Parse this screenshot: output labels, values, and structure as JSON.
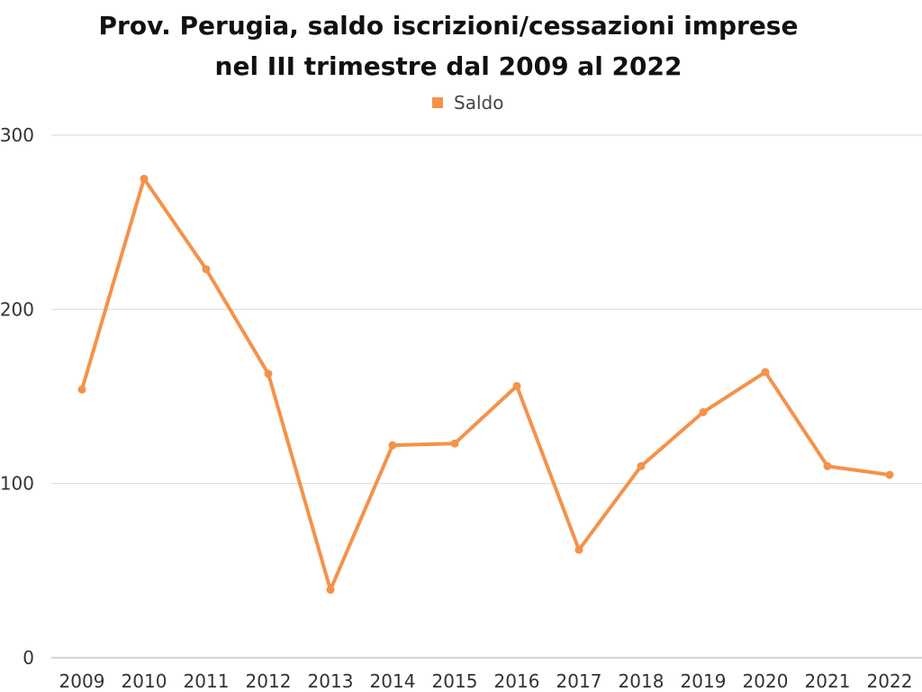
{
  "chart_data": {
    "type": "line",
    "title_lines": [
      "Prov. Perugia, saldo iscrizioni/cessazioni imprese",
      "nel III trimestre dal 2009 al 2022"
    ],
    "xlabel": "",
    "ylabel": "",
    "categories": [
      "2009",
      "2010",
      "2011",
      "2012",
      "2013",
      "2014",
      "2015",
      "2016",
      "2017",
      "2018",
      "2019",
      "2020",
      "2021",
      "2022"
    ],
    "series": [
      {
        "name": "Saldo",
        "color": "#f4924a",
        "values": [
          154,
          275,
          223,
          163,
          39,
          122,
          123,
          156,
          62,
          110,
          141,
          164,
          110,
          105
        ]
      }
    ],
    "ylim": [
      0,
      300
    ],
    "yticks": [
      0,
      100,
      200,
      300
    ],
    "grid": true,
    "legend_position": "top-center"
  }
}
